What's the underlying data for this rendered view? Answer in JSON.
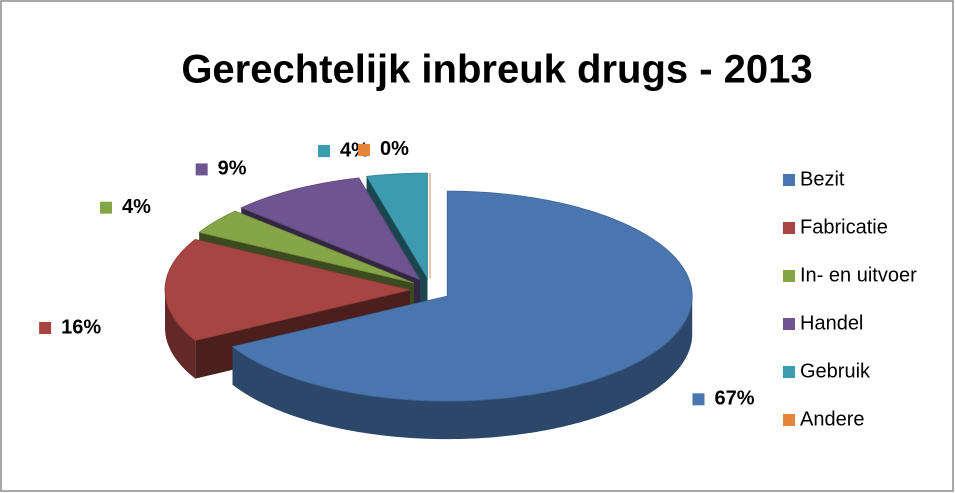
{
  "chart_data": {
    "type": "pie",
    "title": "Gerechtelijk inbreuk drugs - 2013",
    "categories": [
      "Bezit",
      "Fabricatie",
      "In- en uitvoer",
      "Handel",
      "Gebruik",
      "Andere"
    ],
    "values": [
      67,
      16,
      4,
      9,
      4,
      0
    ],
    "value_labels": [
      "67%",
      "16%",
      "4%",
      "9%",
      "4%",
      "0%"
    ],
    "colors": [
      "#4a76b0",
      "#a64541",
      "#86a546",
      "#6e5490",
      "#3d9bb0",
      "#e5843a"
    ],
    "legend": "right"
  }
}
